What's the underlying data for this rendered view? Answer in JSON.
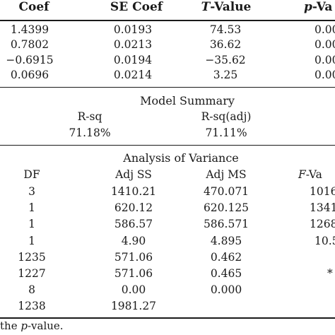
{
  "coefficients": {
    "headers": {
      "coef": "Coef",
      "se_coef": "SE Coef",
      "t_value_italic": "T",
      "t_value_rest": "-Value",
      "p_value_italic": "p",
      "p_value_rest": "-Va"
    },
    "rows": [
      {
        "coef": "1.4399",
        "se_coef": "0.0193",
        "t_value": "74.53",
        "p_value": "0.00"
      },
      {
        "coef": "0.7802",
        "se_coef": "0.0213",
        "t_value": "36.62",
        "p_value": "0.00"
      },
      {
        "coef": "−0.6915",
        "se_coef": "0.0194",
        "t_value": "−35.62",
        "p_value": "0.00"
      },
      {
        "coef": "0.0696",
        "se_coef": "0.0214",
        "t_value": "3.25",
        "p_value": "0.00"
      }
    ]
  },
  "model_summary": {
    "title": "Model Summary",
    "rsq_label": "R-sq",
    "rsq_adj_label": "R-sq(adj)",
    "rsq_value": "71.18%",
    "rsq_adj_value": "71.11%"
  },
  "anova": {
    "title": "Analysis of Variance",
    "headers": {
      "df": "DF",
      "adj_ss": "Adj SS",
      "adj_ms": "Adj MS",
      "f_value_italic": "F",
      "f_value_rest": "-Va"
    },
    "rows": [
      {
        "df": "3",
        "adj_ss": "1410.21",
        "adj_ms": "470.071",
        "f_value": "1016"
      },
      {
        "df": "1",
        "adj_ss": "620.12",
        "adj_ms": "620.125",
        "f_value": "1341"
      },
      {
        "df": "1",
        "adj_ss": "586.57",
        "adj_ms": "586.571",
        "f_value": "1268"
      },
      {
        "df": "1",
        "adj_ss": "4.90",
        "adj_ms": "4.895",
        "f_value": "10.5"
      },
      {
        "df": "1235",
        "adj_ss": "571.06",
        "adj_ms": "0.462",
        "f_value": ""
      },
      {
        "df": "1227",
        "adj_ss": "571.06",
        "adj_ms": "0.465",
        "f_value": "*"
      },
      {
        "df": "8",
        "adj_ss": "0.00",
        "adj_ms": "0.000",
        "f_value": ""
      },
      {
        "df": "1238",
        "adj_ss": "1981.27",
        "adj_ms": "",
        "f_value": ""
      }
    ]
  },
  "footnote": {
    "pre": "the ",
    "italic": "p",
    "post": "-value."
  }
}
